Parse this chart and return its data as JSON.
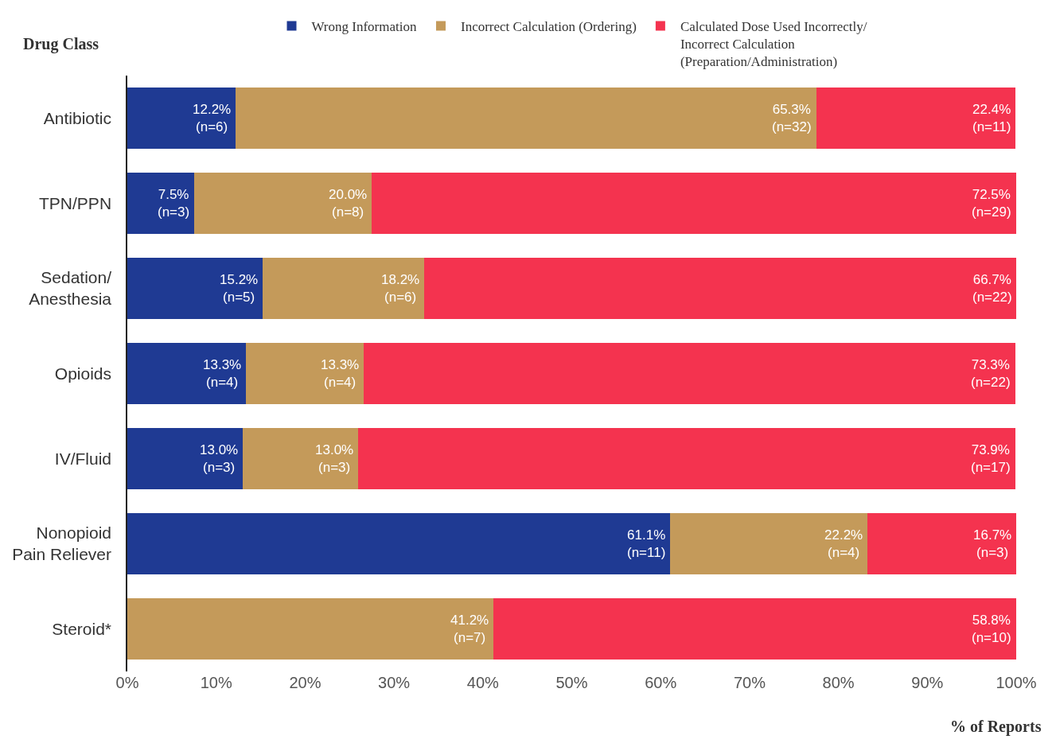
{
  "chart_data": {
    "type": "bar",
    "orientation": "horizontal",
    "stacked": true,
    "ylabel": "Drug Class",
    "xlabel": "% of Reports",
    "categories": [
      "Antibiotic",
      "TPN/PPN",
      "Sedation/\nAnesthesia",
      "Opioids",
      "IV/Fluid",
      "Nonopioid\nPain Reliever",
      "Steroid*"
    ],
    "series": [
      {
        "name": "Wrong Information",
        "color": "#1f3a93",
        "values": [
          12.2,
          7.5,
          15.2,
          13.3,
          13.0,
          61.1,
          null
        ],
        "value_labels": [
          "12.2%\n(n=6)",
          "7.5%\n(n=3)",
          "15.2%\n(n=5)",
          "13.3%\n(n=4)",
          "13.0%\n(n=3)",
          "61.1%\n(n=11)",
          null
        ]
      },
      {
        "name": "Incorrect Calculation (Ordering)",
        "color": "#c49a5a",
        "values": [
          65.3,
          20.0,
          18.2,
          13.3,
          13.0,
          22.2,
          41.2
        ],
        "value_labels": [
          "65.3%\n(n=32)",
          "20.0%\n(n=8)",
          "18.2%\n(n=6)",
          "13.3%\n(n=4)",
          "13.0%\n(n=3)",
          "22.2%\n(n=4)",
          "41.2%\n(n=7)"
        ]
      },
      {
        "name": "Calculated Dose Used Incorrectly/\nIncorrect Calculation\n(Preparation/Administration)",
        "color": "#f4334f",
        "values": [
          22.4,
          72.5,
          66.7,
          73.3,
          73.9,
          16.7,
          58.8
        ],
        "value_labels": [
          "22.4%\n(n=11)",
          "72.5%\n(n=29)",
          "66.7%\n(n=22)",
          "73.3%\n(n=22)",
          "73.9%\n(n=17)",
          "16.7%\n(n=3)",
          "58.8%\n(n=10)"
        ]
      }
    ],
    "xlim": [
      0,
      100
    ],
    "xticks": [
      {
        "value": 0,
        "label": "0%"
      },
      {
        "value": 10,
        "label": "10%"
      },
      {
        "value": 20,
        "label": "20%"
      },
      {
        "value": 30,
        "label": "30%"
      },
      {
        "value": 40,
        "label": "40%"
      },
      {
        "value": 50,
        "label": "50%"
      },
      {
        "value": 60,
        "label": "60%"
      },
      {
        "value": 70,
        "label": "70%"
      },
      {
        "value": 80,
        "label": "80%"
      },
      {
        "value": 90,
        "label": "90%"
      },
      {
        "value": 100,
        "label": "100%"
      }
    ],
    "legend": "top"
  }
}
